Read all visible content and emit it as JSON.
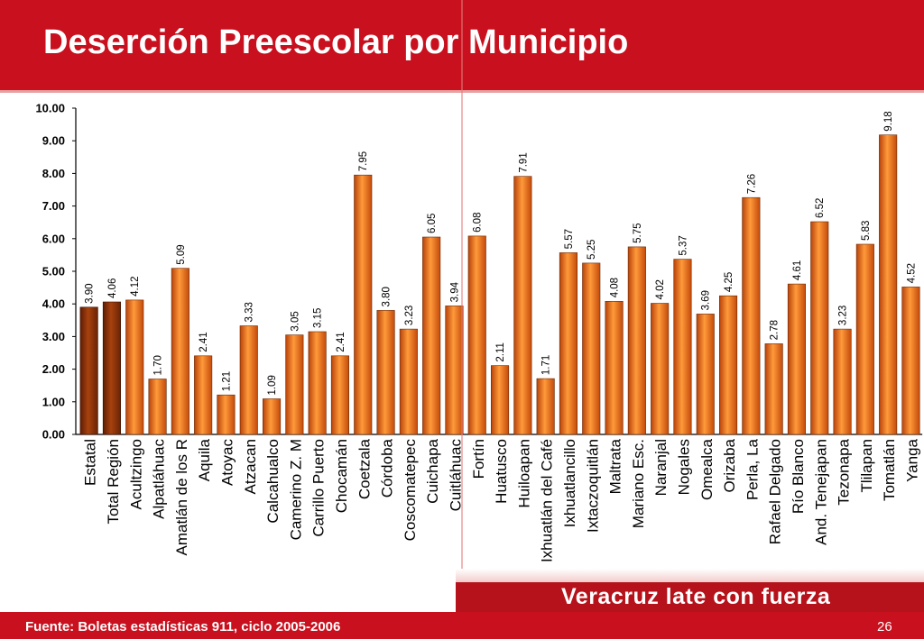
{
  "page": {
    "title": "Deserción Preescolar por Municipio",
    "source": "Fuente: Boletas estadísticas 911, ciclo 2005-2006",
    "page_number": "26",
    "slogan": "Veracruz late con fuerza"
  },
  "colors": {
    "header": "#c8101e",
    "bar_orange": "#e2620f",
    "bar_dark": "#8b2e08",
    "bar_highlight": "#ffa040"
  },
  "chart_data": {
    "type": "bar",
    "title": "",
    "xlabel": "",
    "ylabel": "",
    "ylim": [
      0,
      10
    ],
    "yticks": [
      "0.00",
      "1.00",
      "2.00",
      "3.00",
      "4.00",
      "5.00",
      "6.00",
      "7.00",
      "8.00",
      "9.00",
      "10.00"
    ],
    "grid": false,
    "categories": [
      "Estatal",
      "Total Región",
      "Acultzingo",
      "Alpatláhuac",
      "Amatlán de los R",
      "Aquila",
      "Atoyac",
      "Atzacan",
      "Calcahualco",
      "Camerino Z. M",
      "Carrillo Puerto",
      "Chocamán",
      "Coetzala",
      "Córdoba",
      "Coscomatepec",
      "Cuichapa",
      "Cuitláhuac",
      "Fortín",
      "Huatusco",
      "Huiloapan",
      "Ixhuatlán del Café",
      "Ixhuatlancillo",
      "Ixtaczoquitlán",
      "Maltrata",
      "Mariano Esc.",
      "Naranjal",
      "Nogales",
      "Omealca",
      "Orizaba",
      "Perla, La",
      "Rafael Delgado",
      "Río Blanco",
      "And. Tenejapan",
      "Tezonapa",
      "Tlilapan",
      "Tomatlán",
      "Yanga"
    ],
    "values": [
      3.9,
      4.06,
      4.12,
      1.7,
      5.09,
      2.41,
      1.21,
      3.33,
      1.09,
      3.05,
      3.15,
      2.41,
      7.95,
      3.8,
      3.23,
      6.05,
      3.94,
      6.08,
      2.11,
      7.91,
      1.71,
      5.57,
      5.25,
      4.08,
      5.75,
      4.02,
      5.37,
      3.69,
      4.25,
      7.26,
      2.78,
      4.61,
      6.52,
      3.23,
      5.83,
      9.18,
      4.52
    ],
    "value_labels": [
      "3.90",
      "4.06",
      "4.12",
      "1.70",
      "5.09",
      "2.41",
      "1.21",
      "3.33",
      "1.09",
      "3.05",
      "3.15",
      "2.41",
      "7.95",
      "3.80",
      "3.23",
      "6.05",
      "3.94",
      "6.08",
      "2.11",
      "7.91",
      "1.71",
      "5.57",
      "5.25",
      "4.08",
      "5.75",
      "4.02",
      "5.37",
      "3.69",
      "4.25",
      "7.26",
      "2.78",
      "4.61",
      "6.52",
      "3.23",
      "5.83",
      "9.18",
      "4.52"
    ],
    "highlighted": [
      0,
      1
    ]
  }
}
